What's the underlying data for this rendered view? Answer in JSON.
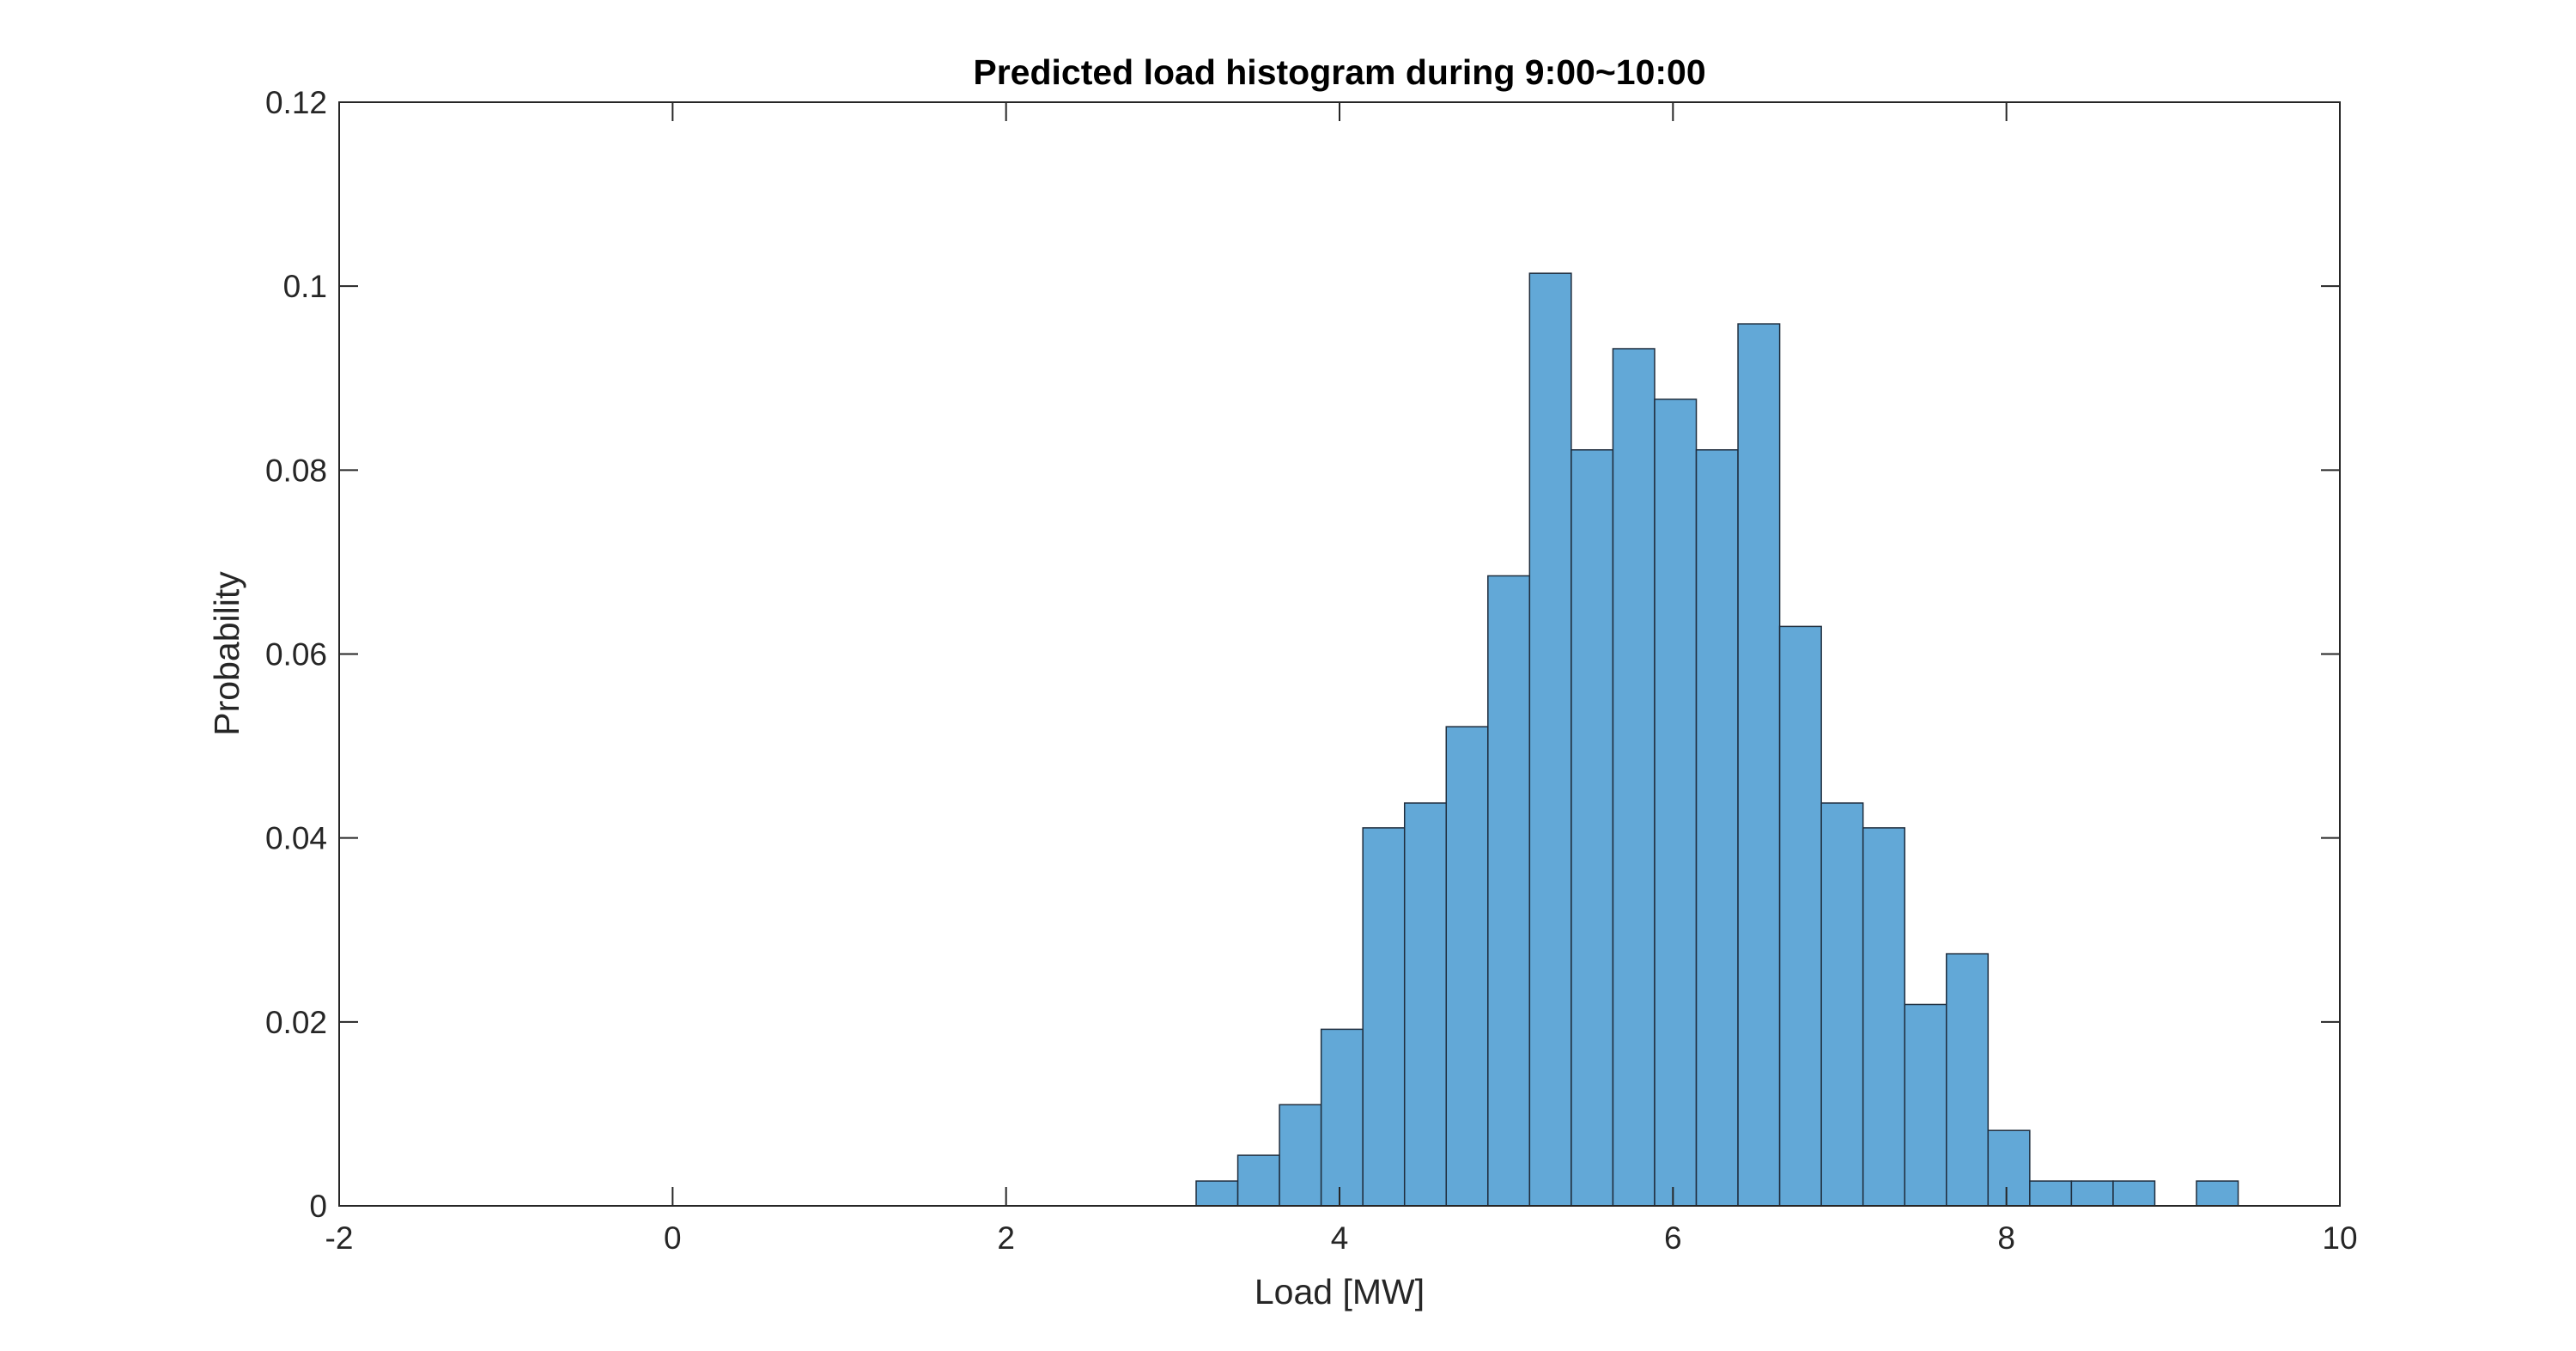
{
  "chart_data": {
    "type": "bar",
    "subtype": "histogram",
    "title": "Predicted load histogram during 9:00~10:00",
    "xlabel": "Load [MW]",
    "ylabel": "Probability",
    "xlim": [
      -2,
      10
    ],
    "ylim": [
      0,
      0.12
    ],
    "xticks": [
      -2,
      0,
      2,
      4,
      6,
      8,
      10
    ],
    "xtick_labels": [
      "-2",
      "0",
      "2",
      "4",
      "6",
      "8",
      "10"
    ],
    "yticks": [
      0,
      0.02,
      0.04,
      0.06,
      0.08,
      0.1,
      0.12
    ],
    "ytick_labels": [
      "0",
      "0.02",
      "0.04",
      "0.06",
      "0.08",
      "0.1",
      "0.12"
    ],
    "bin_start": -0.86,
    "bin_width": 0.25,
    "values": [
      0,
      0,
      0,
      0,
      0,
      0,
      0,
      0,
      0,
      0,
      0,
      0,
      0,
      0,
      0,
      0,
      0.0027,
      0.0055,
      0.011,
      0.0192,
      0.0411,
      0.0438,
      0.0521,
      0.0685,
      0.1014,
      0.0822,
      0.0932,
      0.0877,
      0.0822,
      0.0959,
      0.063,
      0.0438,
      0.0411,
      0.0219,
      0.0274,
      0.0082,
      0.0027,
      0.0027,
      0.0027,
      0,
      0.0027,
      0,
      0,
      0,
      0,
      0,
      0,
      0,
      0,
      0,
      0
    ],
    "grid": false,
    "box": true,
    "colors": {
      "bar_fill": "#62a8d7",
      "bar_edge": "#1f2d3d",
      "axis": "#262626",
      "background": "#ffffff"
    }
  }
}
